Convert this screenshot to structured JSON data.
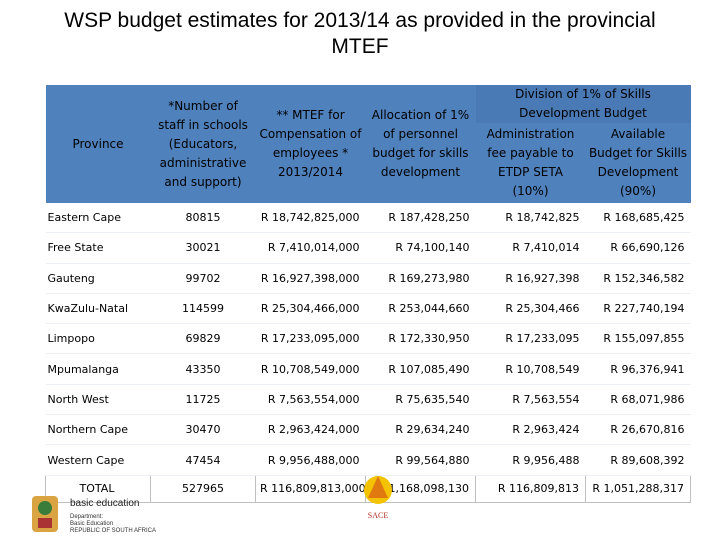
{
  "title": "WSP budget estimates for 2013/14 as provided in the provincial MTEF",
  "table": {
    "headers": [
      "Province",
      "*Number of staff in schools (Educators, administrative and support)",
      "** MTEF for Compensation of employees * 2013/2014",
      "Allocation of 1% of personnel budget for skills development"
    ],
    "group_header": "Division of 1% of Skills Development Budget",
    "subheaders": [
      "Administration fee payable to ETDP SETA (10%)",
      "Available Budget for Skills Development (90%)"
    ],
    "rows": [
      [
        "Eastern Cape",
        "80815",
        "R 18,742,825,000",
        "R 187,428,250",
        "R 18,742,825",
        "R 168,685,425"
      ],
      [
        "Free State",
        "30021",
        "R 7,410,014,000",
        "R 74,100,140",
        "R 7,410,014",
        "R 66,690,126"
      ],
      [
        "Gauteng",
        "99702",
        "R 16,927,398,000",
        "R 169,273,980",
        "R 16,927,398",
        "R 152,346,582"
      ],
      [
        "KwaZulu-Natal",
        "114599",
        "R 25,304,466,000",
        "R 253,044,660",
        "R 25,304,466",
        "R 227,740,194"
      ],
      [
        "Limpopo",
        "69829",
        "R 17,233,095,000",
        "R 172,330,950",
        "R 17,233,095",
        "R 155,097,855"
      ],
      [
        "Mpumalanga",
        "43350",
        "R 10,708,549,000",
        "R 107,085,490",
        "R 10,708,549",
        "R 96,376,941"
      ],
      [
        "North West",
        "11725",
        "R 7,563,554,000",
        "R 75,635,540",
        "R 7,563,554",
        "R 68,071,986"
      ],
      [
        "Northern Cape",
        "30470",
        "R 2,963,424,000",
        "R 29,634,240",
        "R 2,963,424",
        "R 26,670,816"
      ],
      [
        "Western Cape",
        "47454",
        "R 9,956,488,000",
        "R 99,564,880",
        "R 9,956,488",
        "R 89,608,392"
      ]
    ],
    "total": [
      "TOTAL",
      "527965",
      "R 116,809,813,000",
      "R 1,168,098,130",
      "R 116,809,813",
      "R 1,051,288,317"
    ]
  },
  "logos": {
    "dbe_name": "basic education",
    "dbe_sub": [
      "Department:",
      "Basic Education",
      "REPUBLIC OF SOUTH AFRICA"
    ],
    "sace": "SACE"
  }
}
